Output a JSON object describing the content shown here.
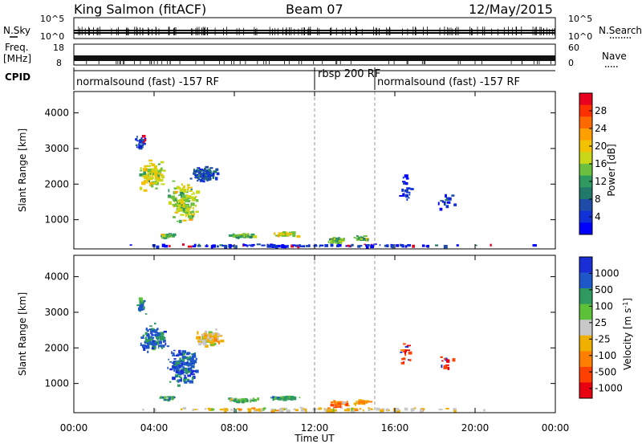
{
  "header": {
    "station": "King Salmon (fitACF)",
    "beam": "Beam 07",
    "date": "12/May/2015"
  },
  "status_panels": {
    "nsky_label": "N.Sky",
    "nsearch_label": "N.Search",
    "noise_ticks": [
      "10^5",
      "10^0"
    ],
    "freq_label": "Freq.",
    "freq_unit": "[MHz]",
    "freq_ticks": [
      "18",
      "8"
    ],
    "nave_label": "Nave",
    "nave_ticks": [
      "60",
      "0"
    ],
    "cpid_label": "CPID",
    "modes": [
      {
        "label": "normalsound (fast) -157 RF",
        "start_hour": 0,
        "end_hour": 12
      },
      {
        "label": "rbsp 200 RF",
        "start_hour": 12,
        "end_hour": 15
      },
      {
        "label": "normalsound (fast) -157 RF",
        "start_hour": 15,
        "end_hour": 24
      }
    ]
  },
  "time_axis": {
    "label": "Time UT",
    "ticks": [
      "00:00",
      "04:00",
      "08:00",
      "12:00",
      "16:00",
      "20:00",
      "00:00"
    ],
    "tick_hours": [
      0,
      4,
      8,
      12,
      16,
      20,
      24
    ],
    "range_hours": [
      0,
      24
    ]
  },
  "chart_data": [
    {
      "type": "heatmap",
      "title": "",
      "ylabel": "Slant Range [km]",
      "yticks": [
        1000,
        2000,
        3000,
        4000
      ],
      "ylim": [
        180,
        4600
      ],
      "xlim": [
        0,
        24
      ],
      "colorbar": {
        "label": "Power [dB]",
        "ticks": [
          "28",
          "24",
          "20",
          "16",
          "12",
          "8",
          "4"
        ],
        "colors": [
          "#e8001e",
          "#ff3000",
          "#ff6a00",
          "#ffa000",
          "#f2c200",
          "#c8d818",
          "#6cc040",
          "#2e9a60",
          "#207868",
          "#1e4ca8",
          "#1030d8",
          "#0000ff"
        ]
      },
      "blobs": [
        {
          "t": 3.8,
          "r": 2300,
          "dt": 0.9,
          "dr": 500,
          "level": 0.55,
          "n": 110
        },
        {
          "t": 5.4,
          "r": 1500,
          "dt": 1.0,
          "dr": 700,
          "level": 0.5,
          "n": 150
        },
        {
          "t": 6.5,
          "r": 2300,
          "dt": 0.9,
          "dr": 300,
          "level": 0.2,
          "n": 90
        },
        {
          "t": 3.3,
          "r": 3200,
          "dt": 0.3,
          "dr": 300,
          "level": 0.1,
          "n": 25
        },
        {
          "t": 4.6,
          "r": 580,
          "dt": 0.5,
          "dr": 60,
          "level": 0.45,
          "n": 30
        },
        {
          "t": 8.3,
          "r": 580,
          "dt": 1.0,
          "dr": 70,
          "level": 0.45,
          "n": 50
        },
        {
          "t": 10.5,
          "r": 620,
          "dt": 1.0,
          "dr": 70,
          "level": 0.55,
          "n": 40
        },
        {
          "t": 13.0,
          "r": 450,
          "dt": 0.7,
          "dr": 120,
          "level": 0.45,
          "n": 35
        },
        {
          "t": 14.3,
          "r": 500,
          "dt": 0.5,
          "dr": 80,
          "level": 0.4,
          "n": 25
        },
        {
          "t": 16.5,
          "r": 1900,
          "dt": 0.4,
          "dr": 500,
          "level": 0.12,
          "n": 18
        },
        {
          "t": 18.5,
          "r": 1500,
          "dt": 0.6,
          "dr": 300,
          "level": 0.15,
          "n": 15
        },
        {
          "t": 12,
          "r": 300,
          "dt": 11.5,
          "dr": 50,
          "level": 0.1,
          "n": 120
        }
      ]
    },
    {
      "type": "heatmap",
      "title": "",
      "ylabel": "Slant Range [km]",
      "yticks": [
        1000,
        2000,
        3000,
        4000
      ],
      "ylim": [
        180,
        4600
      ],
      "xlim": [
        0,
        24
      ],
      "colorbar": {
        "label": "Velocity [m s^-1]",
        "ticks": [
          "1000",
          "500",
          "100",
          "25",
          "-25",
          "-100",
          "-500",
          "-1000"
        ],
        "colors": [
          "#1a2ed6",
          "#1e58c8",
          "#2e9a60",
          "#5cc038",
          "#c8c8c8",
          "#f0b000",
          "#ff8000",
          "#ff4000",
          "#e80010"
        ]
      },
      "blobs": [
        {
          "t": 3.9,
          "r": 2300,
          "dt": 0.8,
          "dr": 500,
          "level": 0.82,
          "n": 110
        },
        {
          "t": 5.4,
          "r": 1500,
          "dt": 1.0,
          "dr": 700,
          "level": 0.85,
          "n": 150
        },
        {
          "t": 6.7,
          "r": 2300,
          "dt": 0.9,
          "dr": 280,
          "level": 0.45,
          "n": 110
        },
        {
          "t": 3.3,
          "r": 3200,
          "dt": 0.3,
          "dr": 300,
          "level": 0.8,
          "n": 25
        },
        {
          "t": 4.6,
          "r": 620,
          "dt": 0.5,
          "dr": 50,
          "level": 0.72,
          "n": 30
        },
        {
          "t": 8.3,
          "r": 560,
          "dt": 1.0,
          "dr": 60,
          "level": 0.62,
          "n": 50
        },
        {
          "t": 10.5,
          "r": 620,
          "dt": 1.0,
          "dr": 60,
          "level": 0.7,
          "n": 40
        },
        {
          "t": 13.2,
          "r": 450,
          "dt": 0.7,
          "dr": 120,
          "level": 0.3,
          "n": 35
        },
        {
          "t": 14.3,
          "r": 500,
          "dt": 0.5,
          "dr": 80,
          "level": 0.3,
          "n": 25
        },
        {
          "t": 16.5,
          "r": 1900,
          "dt": 0.4,
          "dr": 500,
          "level": 0.1,
          "n": 18
        },
        {
          "t": 18.5,
          "r": 1600,
          "dt": 0.5,
          "dr": 300,
          "level": 0.1,
          "n": 15
        },
        {
          "t": 12,
          "r": 300,
          "dt": 11.5,
          "dr": 50,
          "level": 0.45,
          "n": 120
        }
      ]
    }
  ]
}
